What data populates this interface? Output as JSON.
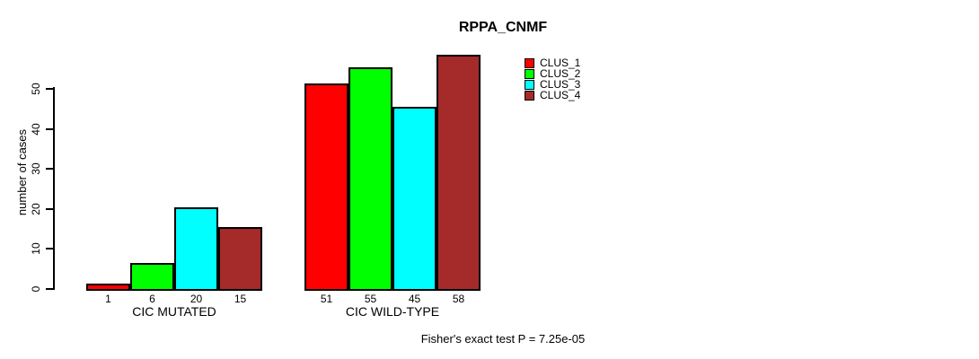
{
  "chart_data": {
    "type": "bar",
    "title": "RPPA_CNMF",
    "ylabel": "number of cases",
    "footer": "Fisher's exact test P = 7.25e-05",
    "series": [
      "CLUS_1",
      "CLUS_2",
      "CLUS_3",
      "CLUS_4"
    ],
    "colors": [
      "#FF0000",
      "#00FF00",
      "#00FFFF",
      "#A52A2A"
    ],
    "groups": [
      {
        "label": "CIC MUTATED",
        "values": [
          1,
          6,
          20,
          15
        ]
      },
      {
        "label": "CIC WILD-TYPE",
        "values": [
          51,
          55,
          45,
          58
        ]
      }
    ],
    "y_ticks": [
      0,
      10,
      20,
      30,
      40,
      50
    ],
    "ylim": [
      0,
      58
    ],
    "grid": false,
    "legend_position": "right-of-bars"
  }
}
